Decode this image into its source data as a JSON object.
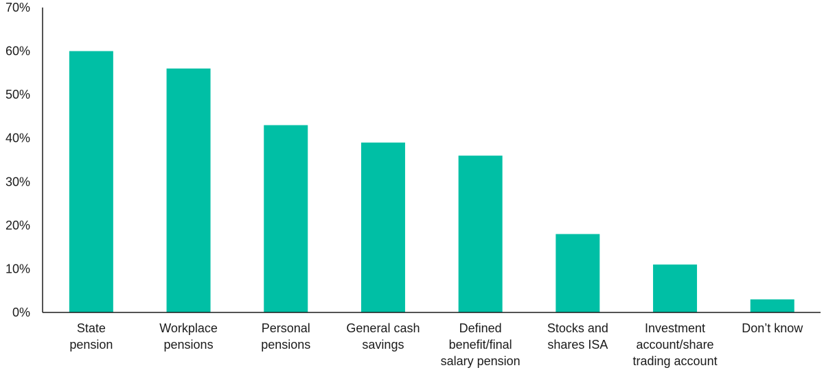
{
  "chart_data": {
    "type": "bar",
    "categories": [
      [
        "State",
        "pension"
      ],
      [
        "Workplace",
        "pensions"
      ],
      [
        "Personal",
        "pensions"
      ],
      [
        "General cash",
        "savings"
      ],
      [
        "Defined",
        "benefit/final",
        "salary pension"
      ],
      [
        "Stocks and",
        "shares ISA"
      ],
      [
        "Investment",
        "account/share",
        "trading account"
      ],
      [
        "Don’t know"
      ]
    ],
    "values": [
      60,
      56,
      43,
      39,
      36,
      18,
      11,
      3
    ],
    "ylim": [
      0,
      70
    ],
    "yticks": [
      0,
      10,
      20,
      30,
      40,
      50,
      60,
      70
    ],
    "ytick_labels": [
      "0%",
      "10%",
      "20%",
      "30%",
      "40%",
      "50%",
      "60%",
      "70%"
    ],
    "bar_color": "#00bfa5",
    "axis_color": "#1a1a1a",
    "grid": false,
    "title": "",
    "xlabel": "",
    "ylabel": ""
  }
}
